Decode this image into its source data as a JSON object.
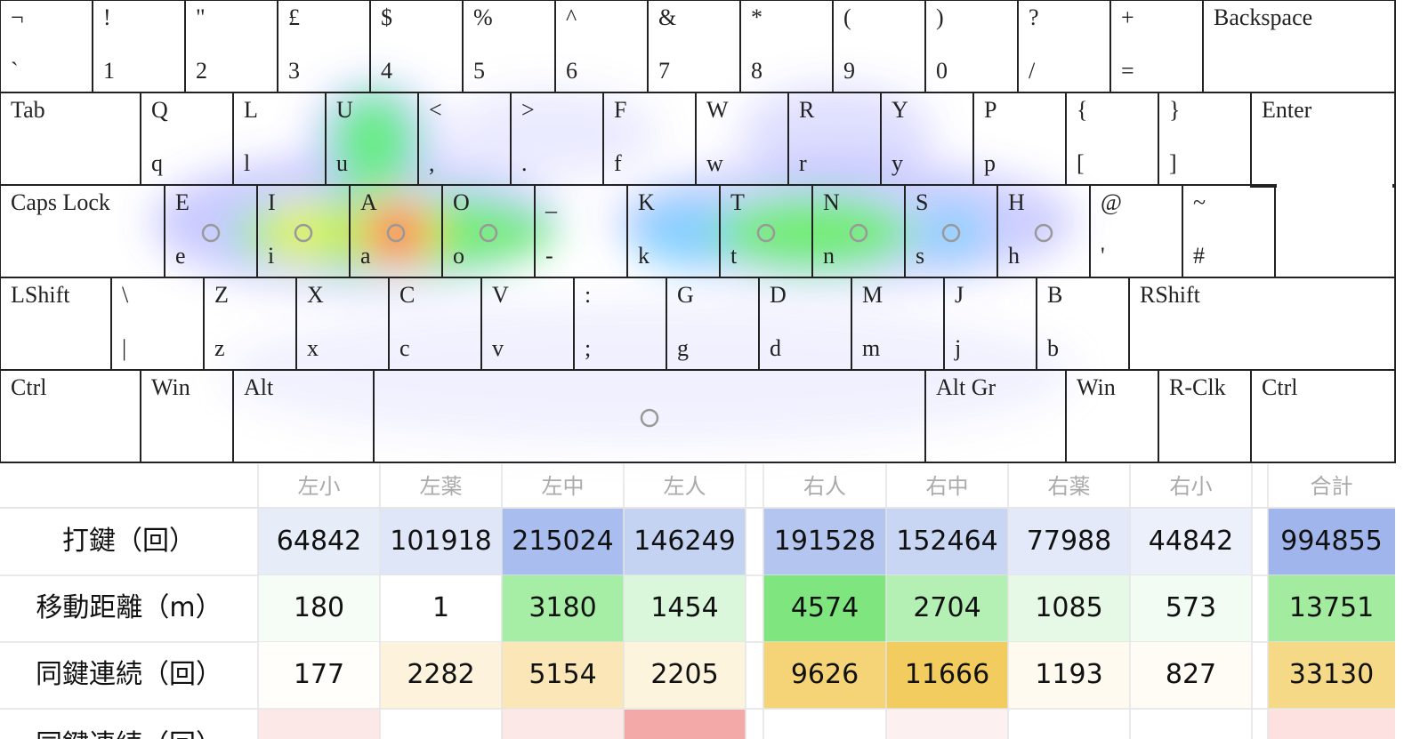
{
  "keyboard": {
    "rows": [
      [
        {
          "top": "¬",
          "bottom": "`"
        },
        {
          "top": "!",
          "bottom": "1"
        },
        {
          "top": "\"",
          "bottom": "2"
        },
        {
          "top": "£",
          "bottom": "3"
        },
        {
          "top": "$",
          "bottom": "4"
        },
        {
          "top": "%",
          "bottom": "5"
        },
        {
          "top": "^",
          "bottom": "6"
        },
        {
          "top": "&",
          "bottom": "7"
        },
        {
          "top": "*",
          "bottom": "8"
        },
        {
          "top": "(",
          "bottom": "9"
        },
        {
          "top": ")",
          "bottom": "0"
        },
        {
          "top": "?",
          "bottom": "/"
        },
        {
          "top": "+",
          "bottom": "="
        },
        {
          "top": "Backspace"
        }
      ],
      [
        {
          "top": "Tab"
        },
        {
          "top": "Q",
          "bottom": "q"
        },
        {
          "top": "L",
          "bottom": "l"
        },
        {
          "top": "U",
          "bottom": "u"
        },
        {
          "top": "<",
          "bottom": ","
        },
        {
          "top": ">",
          "bottom": "."
        },
        {
          "top": "F",
          "bottom": "f"
        },
        {
          "top": "W",
          "bottom": "w"
        },
        {
          "top": "R",
          "bottom": "r"
        },
        {
          "top": "Y",
          "bottom": "y"
        },
        {
          "top": "P",
          "bottom": "p"
        },
        {
          "top": "{",
          "bottom": "["
        },
        {
          "top": "}",
          "bottom": "]"
        },
        {
          "top": "Enter"
        }
      ],
      [
        {
          "top": "Caps Lock"
        },
        {
          "top": "E",
          "bottom": "e"
        },
        {
          "top": "I",
          "bottom": "i"
        },
        {
          "top": "A",
          "bottom": "a"
        },
        {
          "top": "O",
          "bottom": "o"
        },
        {
          "top": "_",
          "bottom": "-"
        },
        {
          "top": "K",
          "bottom": "k"
        },
        {
          "top": "T",
          "bottom": "t"
        },
        {
          "top": "N",
          "bottom": "n"
        },
        {
          "top": "S",
          "bottom": "s"
        },
        {
          "top": "H",
          "bottom": "h"
        },
        {
          "top": "@",
          "bottom": "'"
        },
        {
          "top": "~",
          "bottom": "#"
        }
      ],
      [
        {
          "top": "LShift"
        },
        {
          "top": "\\",
          "bottom": "|"
        },
        {
          "top": "Z",
          "bottom": "z"
        },
        {
          "top": "X",
          "bottom": "x"
        },
        {
          "top": "C",
          "bottom": "c"
        },
        {
          "top": "V",
          "bottom": "v"
        },
        {
          "top": ":",
          "bottom": ";"
        },
        {
          "top": "G",
          "bottom": "g"
        },
        {
          "top": "D",
          "bottom": "d"
        },
        {
          "top": "M",
          "bottom": "m"
        },
        {
          "top": "J",
          "bottom": "j"
        },
        {
          "top": "B",
          "bottom": "b"
        },
        {
          "top": "RShift"
        }
      ],
      [
        {
          "top": "Ctrl"
        },
        {
          "top": "Win"
        },
        {
          "top": "Alt"
        },
        {},
        {
          "top": "Alt Gr"
        },
        {
          "top": "Win"
        },
        {
          "top": "R-Clk"
        },
        {
          "top": "Ctrl"
        }
      ]
    ]
  },
  "table": {
    "headers": [
      "左小",
      "左薬",
      "左中",
      "左人",
      "右人",
      "右中",
      "右薬",
      "右小",
      "合計"
    ],
    "rows": [
      {
        "label": "打鍵（回）",
        "values": [
          64842,
          101918,
          215024,
          146249,
          191528,
          152464,
          77988,
          44842,
          994855
        ],
        "colors": [
          "#e6ecf8",
          "#dfe6f7",
          "#a9bdee",
          "#c5d3f3",
          "#b4c6f0",
          "#c8d5f3",
          "#e3e9f8",
          "#ecf0fa",
          "#9fb5ec"
        ]
      },
      {
        "label": "移動距離（m）",
        "values": [
          180,
          1,
          3180,
          1454,
          4574,
          2704,
          1085,
          573,
          13751
        ],
        "colors": [
          "#f6fcf6",
          "#ffffff",
          "#a6eea6",
          "#dbf7db",
          "#7fe57f",
          "#b4f0b4",
          "#e6f9e6",
          "#f3fcf3",
          "#a3ec9f"
        ]
      },
      {
        "label": "同鍵連続（回）",
        "values": [
          177,
          2282,
          5154,
          2205,
          9626,
          11666,
          1193,
          827,
          33130
        ],
        "colors": [
          "#fffefa",
          "#fdf3dc",
          "#fae6b6",
          "#fdf4de",
          "#f5d478",
          "#f3cc5f",
          "#fefaf0",
          "#fffcf6",
          "#f6d987"
        ]
      },
      {
        "label": "同鍵連続（回）"
      }
    ]
  }
}
